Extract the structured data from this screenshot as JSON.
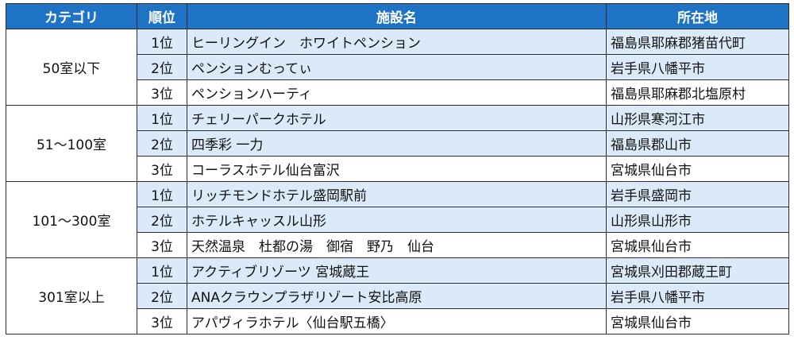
{
  "headers": {
    "category": "カテゴリ",
    "rank": "順位",
    "facility": "施設名",
    "location": "所在地"
  },
  "groups": [
    {
      "category": "50室以下",
      "rows": [
        {
          "rank": "1位",
          "facility": "ヒーリングイン　ホワイトペンション",
          "location": "福島県耶麻郡猪苗代町"
        },
        {
          "rank": "2位",
          "facility": "ペンションむってぃ",
          "location": "岩手県八幡平市"
        },
        {
          "rank": "3位",
          "facility": "ペンションハーティ",
          "location": "福島県耶麻郡北塩原村"
        }
      ]
    },
    {
      "category": "51～100室",
      "rows": [
        {
          "rank": "1位",
          "facility": "チェリーパークホテル",
          "location": "山形県寒河江市"
        },
        {
          "rank": "2位",
          "facility": "四季彩 一力",
          "location": "福島県郡山市"
        },
        {
          "rank": "3位",
          "facility": "コーラスホテル仙台富沢",
          "location": "宮城県仙台市"
        }
      ]
    },
    {
      "category": "101～300室",
      "rows": [
        {
          "rank": "1位",
          "facility": "リッチモンドホテル盛岡駅前",
          "location": "岩手県盛岡市"
        },
        {
          "rank": "2位",
          "facility": "ホテルキャッスル山形",
          "location": "山形県山形市"
        },
        {
          "rank": "3位",
          "facility": "天然温泉　杜都の湯　御宿　野乃　仙台",
          "location": "宮城県仙台市"
        }
      ]
    },
    {
      "category": "301室以上",
      "rows": [
        {
          "rank": "1位",
          "facility": "アクティブリゾーツ 宮城蔵王",
          "location": "宮城県刈田郡蔵王町"
        },
        {
          "rank": "2位",
          "facility": "ANAクラウンプラザリゾート安比高原",
          "location": "岩手県八幡平市"
        },
        {
          "rank": "3位",
          "facility": "アパヴィラホテル〈仙台駅五橋〉",
          "location": "宮城県仙台市"
        }
      ]
    }
  ],
  "colors": {
    "header_bg": "#1f73c4",
    "header_text": "#ffffff",
    "shaded_row": "#daeaf8",
    "border": "#2b2b2b"
  }
}
